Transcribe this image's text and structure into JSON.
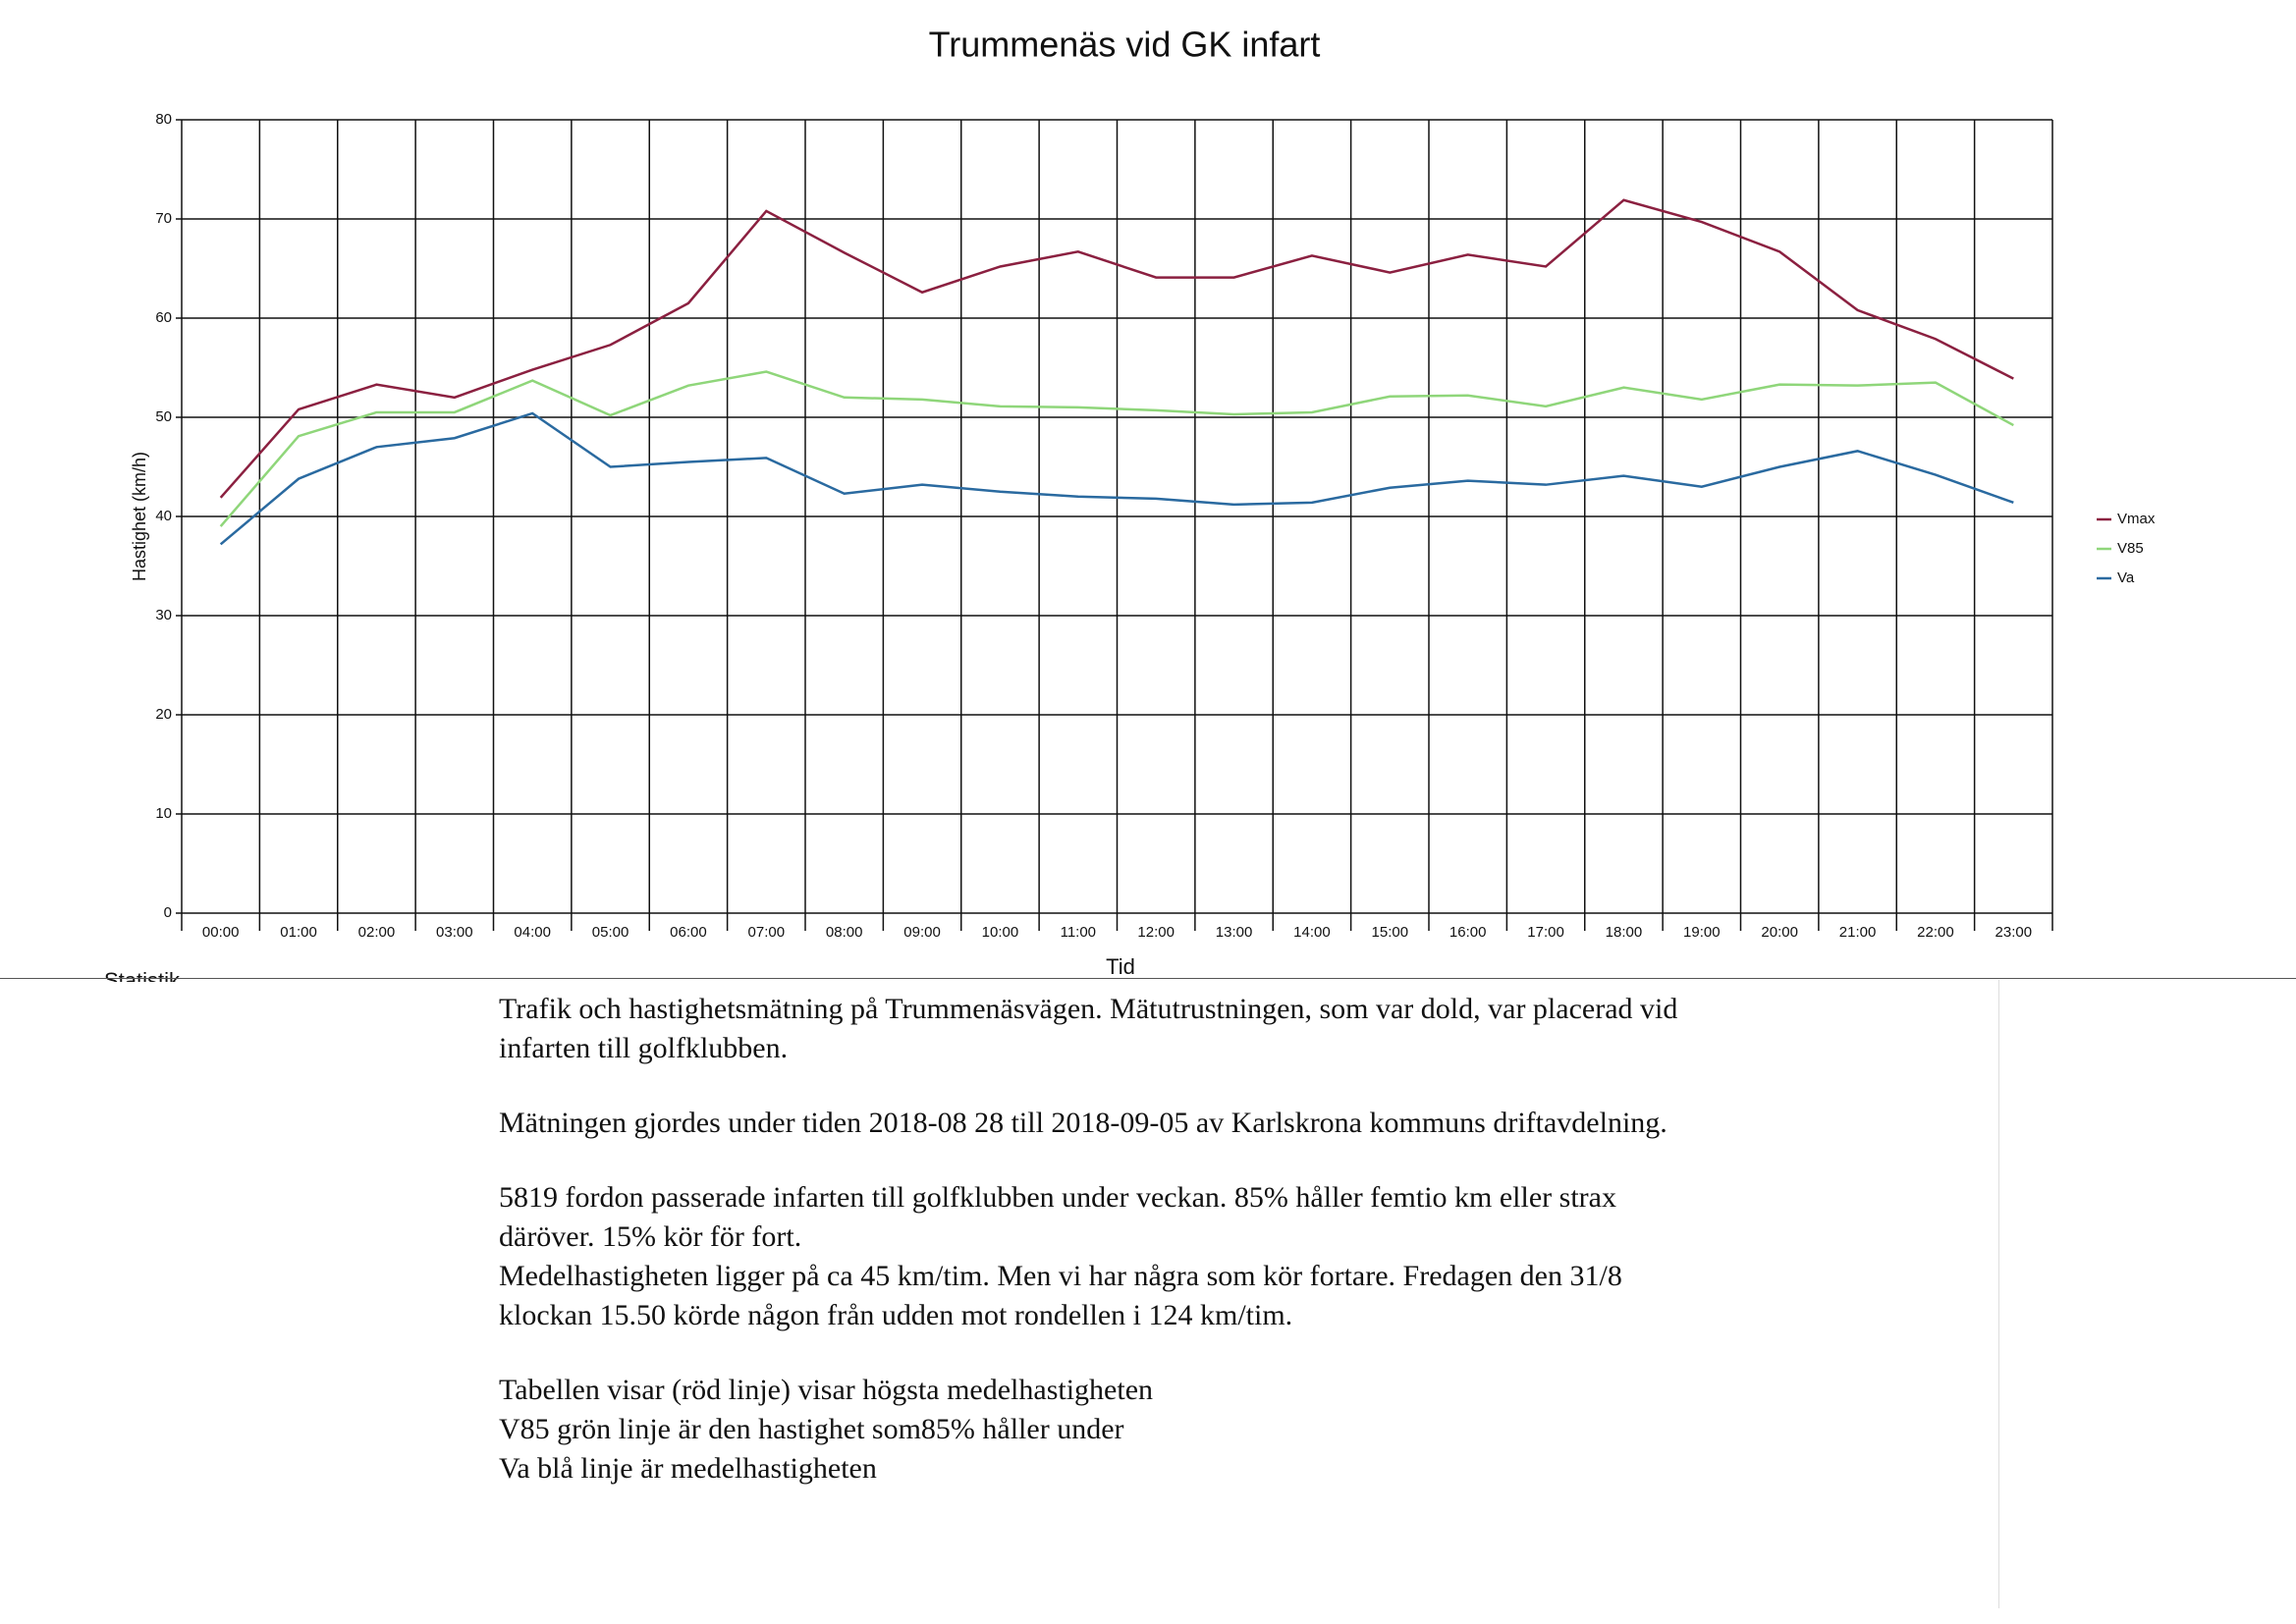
{
  "chart_data": {
    "type": "line",
    "title": "Trummenäs vid GK infart",
    "y_label": "Hastighet (km/h)",
    "x_label": "Tid",
    "categories": [
      "00:00",
      "01:00",
      "02:00",
      "03:00",
      "04:00",
      "05:00",
      "06:00",
      "07:00",
      "08:00",
      "09:00",
      "10:00",
      "11:00",
      "12:00",
      "13:00",
      "14:00",
      "15:00",
      "16:00",
      "17:00",
      "18:00",
      "19:00",
      "20:00",
      "21:00",
      "22:00",
      "23:00"
    ],
    "series": [
      {
        "name": "Vmax",
        "color": "#8b2040",
        "values": [
          41.9,
          50.8,
          53.3,
          52,
          54.8,
          57.3,
          61.5,
          70.8,
          66.6,
          62.6,
          65.2,
          66.7,
          64.1,
          64.1,
          66.3,
          64.6,
          66.4,
          65.2,
          71.9,
          69.7,
          66.7,
          60.8,
          57.9,
          53.9
        ]
      },
      {
        "name": "V85",
        "color": "#8fd67a",
        "values": [
          39,
          48.1,
          50.5,
          50.5,
          53.7,
          50.2,
          53.2,
          54.6,
          52,
          51.8,
          51.1,
          51,
          50.7,
          50.3,
          50.5,
          52.1,
          52.2,
          51.1,
          53,
          51.8,
          53.3,
          53.2,
          53.5,
          49.2
        ]
      },
      {
        "name": "Va",
        "color": "#2a6aa0",
        "values": [
          37.2,
          43.8,
          47,
          47.9,
          50.4,
          45,
          45.5,
          45.9,
          42.3,
          43.2,
          42.5,
          42,
          41.8,
          41.2,
          41.4,
          42.9,
          43.6,
          43.2,
          44.1,
          43,
          45,
          46.6,
          44.2,
          41.4
        ]
      }
    ],
    "ylim": [
      0,
      80
    ],
    "yticks": [
      0,
      10,
      20,
      30,
      40,
      50,
      60,
      70,
      80
    ],
    "grid": true,
    "legend": "right"
  },
  "section_label": "Statistik",
  "paragraphs": [
    [
      "Trafik och hastighetsmätning på Trummenäsvägen. Mätutrustningen, som var dold, var placerad vid",
      "infarten till golfklubben."
    ],
    [
      "Mätningen gjordes under tiden 2018-08 28 till 2018-09-05 av Karlskrona kommuns driftavdelning."
    ],
    [
      "5819 fordon passerade infarten till golfklubben under veckan. 85%  håller femtio km eller strax",
      "däröver. 15% kör för fort.",
      "Medelhastigheten ligger på ca 45 km/tim. Men vi har några som kör fortare. Fredagen den 31/8",
      "klockan 15.50 körde någon från udden mot rondellen i 124 km/tim."
    ],
    [
      "Tabellen visar (röd linje) visar högsta medelhastigheten",
      "V85 grön linje är den hastighet som85% håller under",
      "Va blå linje är medelhastigheten"
    ]
  ]
}
